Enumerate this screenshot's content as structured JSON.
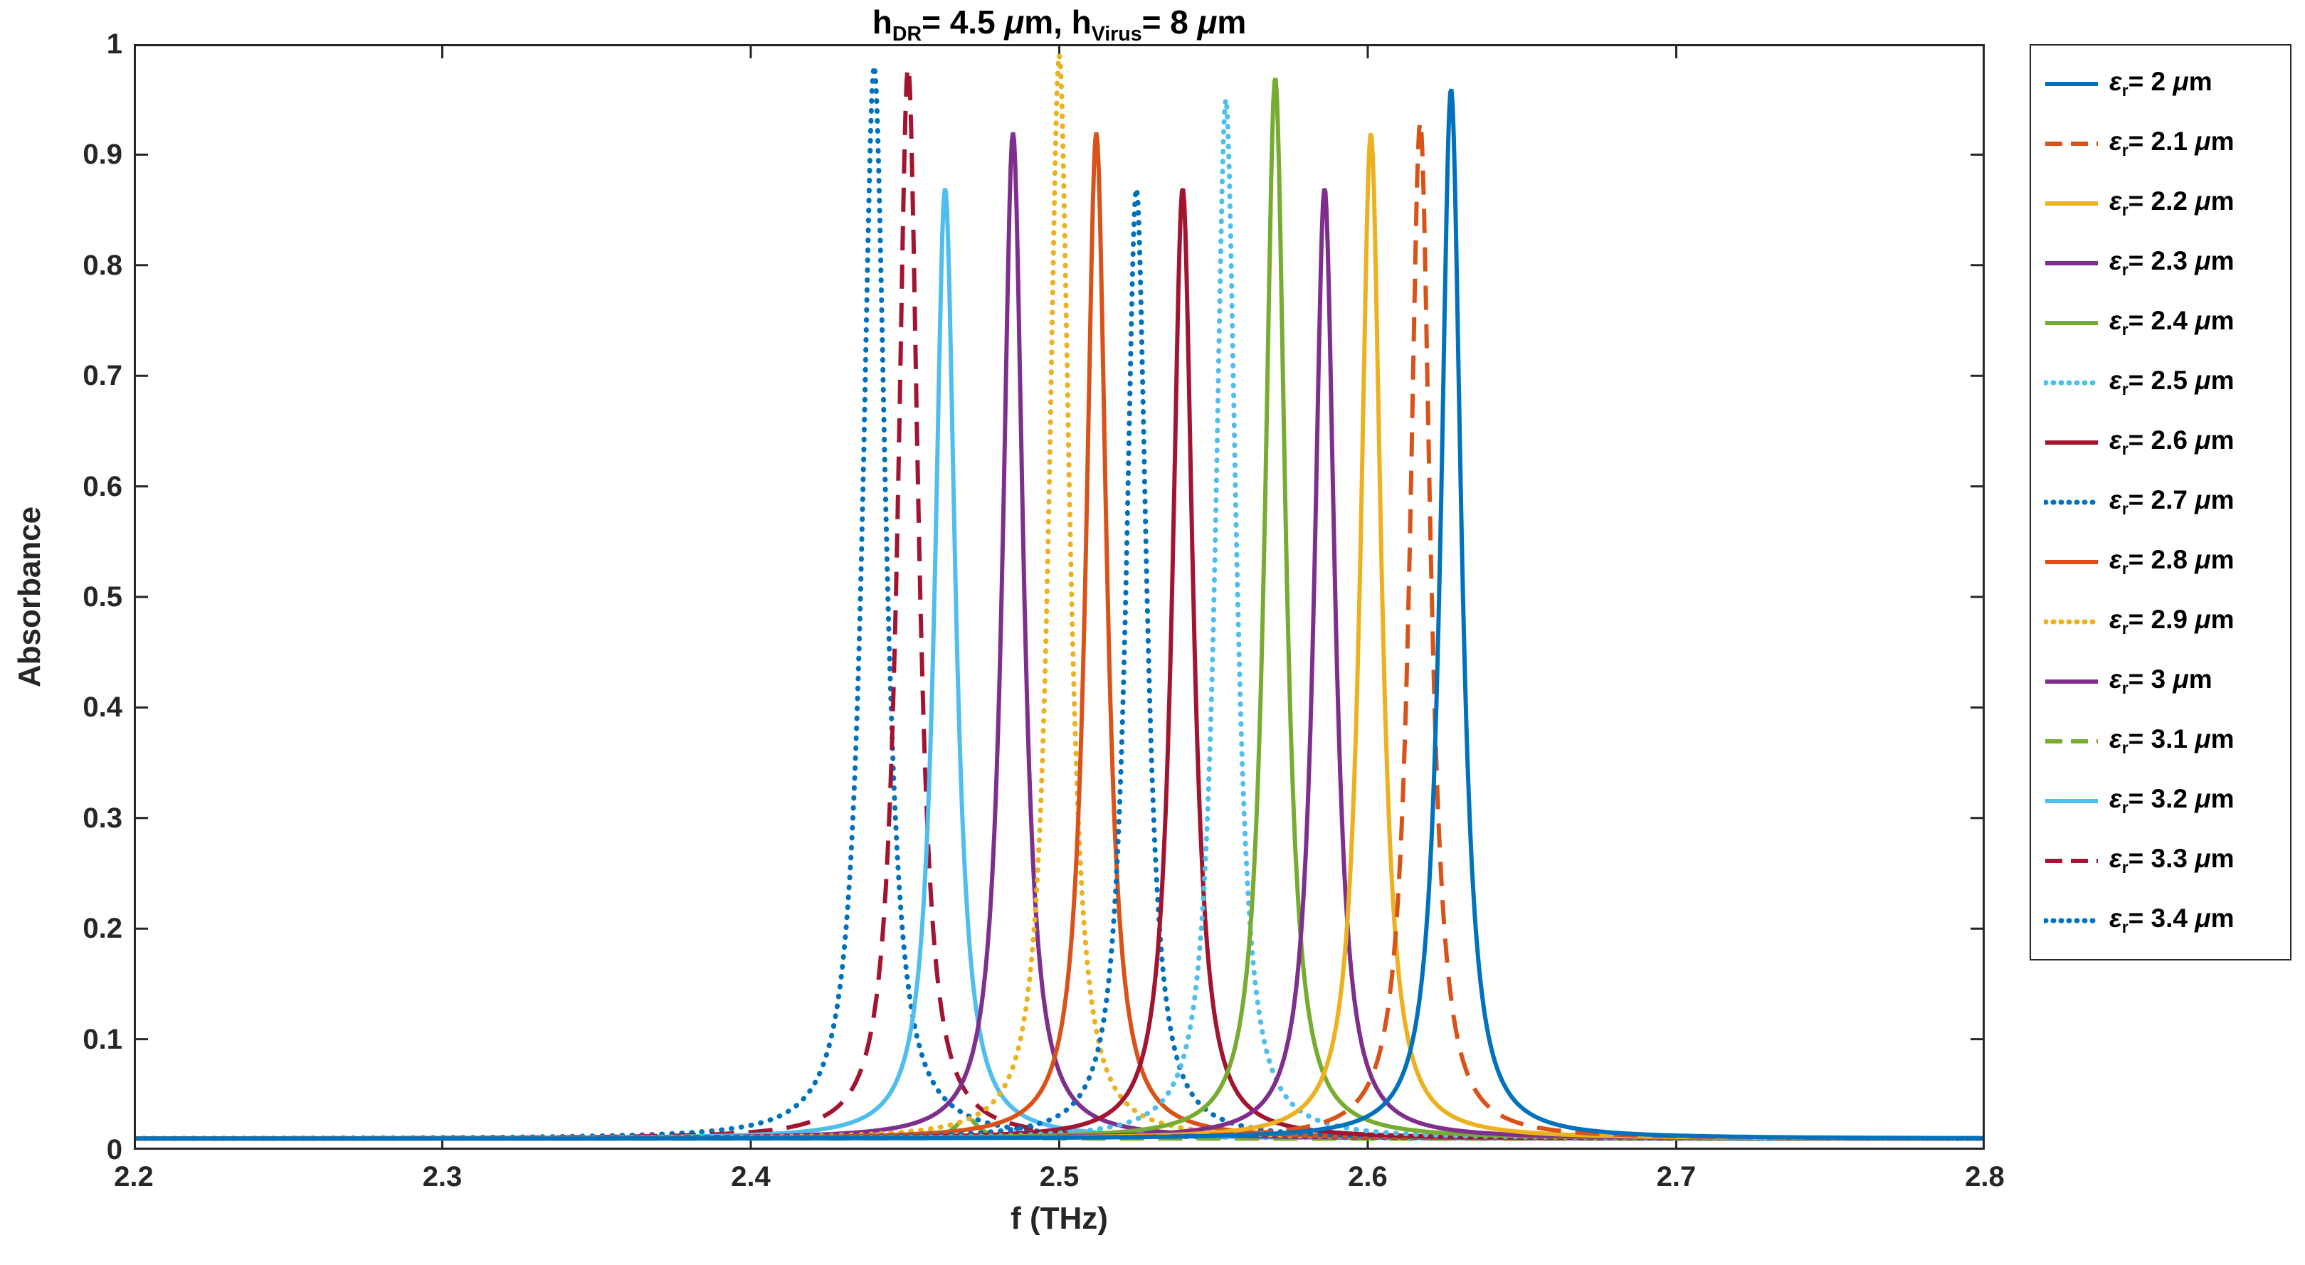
{
  "title": {
    "plain": "h_DR= 4.5 μm, h_Virus= 8 μm",
    "segments": [
      {
        "t": "h",
        "style": "normal"
      },
      {
        "t": "DR",
        "style": "sub"
      },
      {
        "t": "= 4.5 ",
        "style": "normal"
      },
      {
        "t": "μ",
        "style": "italic"
      },
      {
        "t": "m, h",
        "style": "normal"
      },
      {
        "t": "Virus",
        "style": "sub"
      },
      {
        "t": "= 8 ",
        "style": "normal"
      },
      {
        "t": "μ",
        "style": "italic"
      },
      {
        "t": "m",
        "style": "normal"
      }
    ]
  },
  "axes": {
    "xlabel": "f (THz)",
    "ylabel": "Absorbance"
  },
  "legend": {
    "epsilon": "ε",
    "sub": "r",
    "equals": "=",
    "unit_mu": "μ",
    "unit_m": "m"
  },
  "chart_data": {
    "type": "line",
    "title": "h_DR= 4.5 μm, h_Virus= 8 μm",
    "xlabel": "f (THz)",
    "ylabel": "Absorbance",
    "xlim": [
      2.2,
      2.8
    ],
    "ylim": [
      0,
      1
    ],
    "xticks": [
      2.2,
      2.3,
      2.4,
      2.5,
      2.6,
      2.7,
      2.8
    ],
    "yticks": [
      0,
      0.1,
      0.2,
      0.3,
      0.4,
      0.5,
      0.6,
      0.7,
      0.8,
      0.9,
      1
    ],
    "grid": false,
    "legend_position": "right-outside",
    "curve_model": "lorentzian",
    "baseline_absorbance": 0.01,
    "series": [
      {
        "label": "εr= 2 μm",
        "value": "2",
        "color": "#0072BD",
        "style": "solid",
        "peak_f": 2.627,
        "peak_a": 0.96,
        "hwhm": 0.004
      },
      {
        "label": "εr= 2.1 μm",
        "value": "2.1",
        "color": "#D95319",
        "style": "dashed",
        "peak_f": 2.617,
        "peak_a": 0.93,
        "hwhm": 0.004
      },
      {
        "label": "εr= 2.2 μm",
        "value": "2.2",
        "color": "#EDB120",
        "style": "solid",
        "peak_f": 2.601,
        "peak_a": 0.92,
        "hwhm": 0.004
      },
      {
        "label": "εr= 2.3 μm",
        "value": "2.3",
        "color": "#7E2F8E",
        "style": "solid",
        "peak_f": 2.586,
        "peak_a": 0.87,
        "hwhm": 0.004
      },
      {
        "label": "εr= 2.4 μm",
        "value": "2.4",
        "color": "#77AC30",
        "style": "solid",
        "peak_f": 2.57,
        "peak_a": 0.97,
        "hwhm": 0.004
      },
      {
        "label": "εr= 2.5 μm",
        "value": "2.5",
        "color": "#4DBEEE",
        "style": "dotted",
        "peak_f": 2.554,
        "peak_a": 0.95,
        "hwhm": 0.004
      },
      {
        "label": "εr= 2.6 μm",
        "value": "2.6",
        "color": "#A2142F",
        "style": "solid",
        "peak_f": 2.54,
        "peak_a": 0.87,
        "hwhm": 0.004
      },
      {
        "label": "εr= 2.7 μm",
        "value": "2.7",
        "color": "#0072BD",
        "style": "dotted",
        "peak_f": 2.525,
        "peak_a": 0.87,
        "hwhm": 0.004
      },
      {
        "label": "εr= 2.8 μm",
        "value": "2.8",
        "color": "#D95319",
        "style": "solid",
        "peak_f": 2.512,
        "peak_a": 0.92,
        "hwhm": 0.004
      },
      {
        "label": "εr= 2.9 μm",
        "value": "2.9",
        "color": "#EDB120",
        "style": "dotted",
        "peak_f": 2.5,
        "peak_a": 0.99,
        "hwhm": 0.004
      },
      {
        "label": "εr= 3 μm",
        "value": "3",
        "color": "#7E2F8E",
        "style": "solid",
        "peak_f": 2.485,
        "peak_a": 0.92,
        "hwhm": 0.004
      },
      {
        "label": "εr= 3.1 μm",
        "value": "3.1",
        "color": "#77AC30",
        "style": "dashed",
        "peak_f": 2.47,
        "peak_a": 0.03,
        "hwhm": 0.004
      },
      {
        "label": "εr= 3.2 μm",
        "value": "3.2",
        "color": "#4DBEEE",
        "style": "solid",
        "peak_f": 2.463,
        "peak_a": 0.87,
        "hwhm": 0.004
      },
      {
        "label": "εr= 3.3 μm",
        "value": "3.3",
        "color": "#A2142F",
        "style": "dashed",
        "peak_f": 2.451,
        "peak_a": 0.98,
        "hwhm": 0.004
      },
      {
        "label": "εr= 3.4 μm",
        "value": "3.4",
        "color": "#0072BD",
        "style": "dotted",
        "peak_f": 2.44,
        "peak_a": 0.98,
        "hwhm": 0.0045
      }
    ]
  }
}
